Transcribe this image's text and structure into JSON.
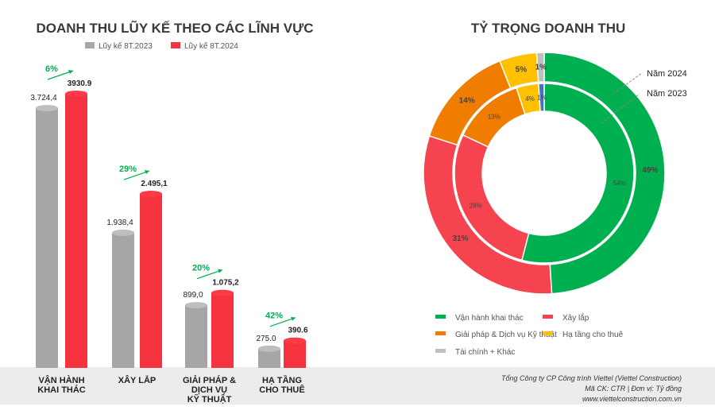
{
  "chart_data": [
    {
      "type": "bar",
      "title": "DOANH THU LŨY KẾ THEO CÁC LĨNH VỰC",
      "categories": [
        "VẬN HÀNH\nKHAI THÁC",
        "XÂY LẮP",
        "GIẢI PHÁP &\nDỊCH VỤ\nKỸ THUẬT",
        "HẠ TẦNG\nCHO THUÊ"
      ],
      "series": [
        {
          "name": "Lũy kế 8T.2023",
          "color": "#a6a6a6",
          "values": [
            3724.4,
            1938.4,
            899.0,
            275.0
          ],
          "labels": [
            "3.724,4",
            "1.938,4",
            "899,0",
            "275.0"
          ]
        },
        {
          "name": "Lũy kế 8T.2024",
          "color": "#f5333f",
          "values": [
            3930.9,
            2495.1,
            1075.2,
            390.6
          ],
          "labels": [
            "3930.9",
            "2.495,1",
            "1.075,2",
            "390.6"
          ]
        }
      ],
      "growth": [
        "6%",
        "29%",
        "20%",
        "42%"
      ],
      "legend": "top"
    },
    {
      "type": "pie",
      "title": "TỶ TRỌNG DOANH THU",
      "categories": [
        "Vận hành khai thác",
        "Xây lắp",
        "Giải pháp & Dịch vụ Kỹ thuật",
        "Hạ tầng cho thuê",
        "Tài chính + Khác"
      ],
      "colors": [
        "#00b050",
        "#f5434f",
        "#f07c00",
        "#ffc000",
        "#bfbfbf"
      ],
      "series": [
        {
          "name": "Năm 2024",
          "values": [
            49,
            31,
            14,
            5,
            1
          ]
        },
        {
          "name": "Năm 2023",
          "values": [
            54,
            28,
            13,
            4,
            1
          ],
          "last_color": "#4472c4"
        }
      ],
      "legend": "bottom"
    }
  ],
  "footer": {
    "line1": "Tổng Công ty CP Công trình Viettel (Viettel Construction)",
    "line2": "Mã CK: CTR | Đơn vị: Tỷ đồng",
    "line3": "www.viettelconstruction.com.vn"
  }
}
